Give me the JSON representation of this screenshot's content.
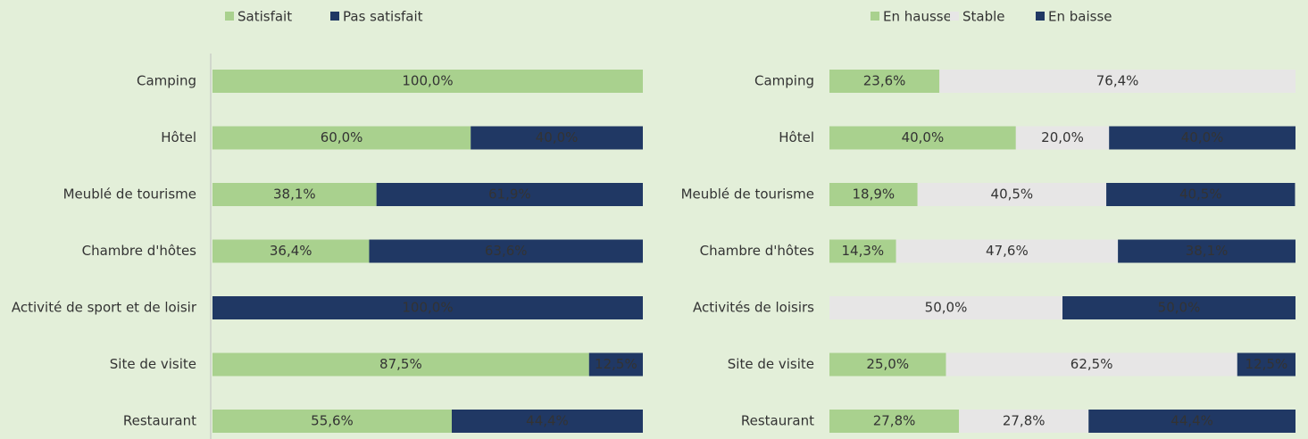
{
  "chart_data": [
    {
      "type": "bar",
      "stacked": true,
      "orientation": "horizontal",
      "categories": [
        "Camping",
        "Hôtel",
        "Meublé de tourisme",
        "Chambre d'hôtes",
        "Activité de sport et de loisir",
        "Site de visite",
        "Restaurant"
      ],
      "xlim": [
        0,
        100
      ],
      "series": [
        {
          "name": "Satisfait",
          "color": "#a9d18e",
          "values": [
            100,
            60,
            38.1,
            36.4,
            0,
            87.5,
            55.6
          ],
          "value_labels": [
            "100,0%",
            "60,0%",
            "38,1%",
            "36,4%",
            null,
            "87,5%",
            "55,6%"
          ]
        },
        {
          "name": "Pas satisfait",
          "color": "#203864",
          "values": [
            0,
            40,
            61.9,
            63.6,
            100,
            12.5,
            44.4
          ],
          "value_labels": [
            null,
            "40,0%",
            "61,9%",
            "63,6%",
            "100,0%",
            "12,5%",
            "44,4%"
          ]
        }
      ]
    },
    {
      "type": "bar",
      "stacked": true,
      "orientation": "horizontal",
      "categories": [
        "Camping",
        "Hôtel",
        "Meublé de tourisme",
        "Chambre d'hôtes",
        "Activités de loisirs",
        "Site de visite",
        "Restaurant"
      ],
      "xlim": [
        0,
        100
      ],
      "series": [
        {
          "name": "En hausse",
          "color": "#a9d18e",
          "values": [
            23.6,
            40,
            18.9,
            14.3,
            0,
            25,
            27.8
          ],
          "value_labels": [
            "23,6%",
            "40,0%",
            "18,9%",
            "14,3%",
            null,
            "25,0%",
            "27,8%"
          ]
        },
        {
          "name": "Stable",
          "color": "#e7e6e6",
          "values": [
            76.4,
            20,
            40.5,
            47.6,
            50,
            62.5,
            27.8
          ],
          "value_labels": [
            "76,4%",
            "20,0%",
            "40,5%",
            "47,6%",
            "50,0%",
            "62,5%",
            "27,8%"
          ]
        },
        {
          "name": "En baisse",
          "color": "#203864",
          "values": [
            0,
            40,
            40.5,
            38.1,
            50,
            12.5,
            44.4
          ],
          "value_labels": [
            null,
            "40,0%",
            "40,5%",
            "38,1%",
            "50,0%",
            "12,5%",
            "44,4%"
          ]
        }
      ]
    }
  ]
}
